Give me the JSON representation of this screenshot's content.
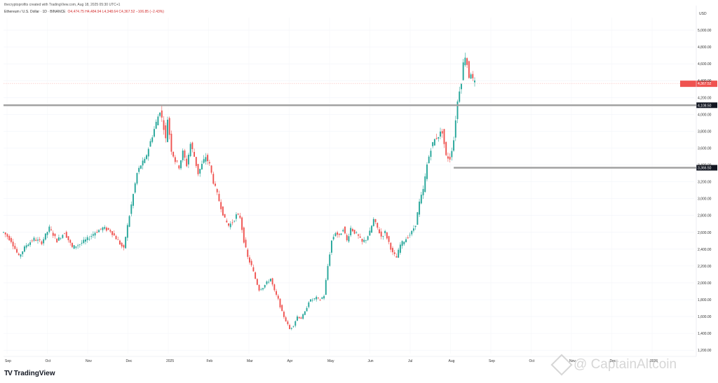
{
  "header": {
    "credit": "thecryptoprofits created with TradingView.com, Aug 18, 2025 05:30 UTC+1",
    "symbol": "Ethereum / U.S. Dollar · 1D · BINANCE",
    "ohlc": "O4,474.75 H4,484.94 L4,348.64 C4,367.52 −106.85 (−2.43%)"
  },
  "footer": {
    "brand": "TradingView"
  },
  "watermark": {
    "text": "@ CaptainAltcoin"
  },
  "axis": {
    "currency": "USD"
  },
  "colors": {
    "up": "#26a69a",
    "down": "#ef5350",
    "level": "#9e9e9e",
    "bg": "#ffffff"
  },
  "chart_data": {
    "type": "candlestick",
    "title": "Ethereum / U.S. Dollar · 1D · BINANCE",
    "x_ticks": [
      "Sep",
      "Oct",
      "Nov",
      "Dec",
      "2025",
      "Feb",
      "Mar",
      "Apr",
      "May",
      "Jun",
      "Jul",
      "Aug",
      "Sep",
      "Oct",
      "Nov",
      "Dec",
      "2026"
    ],
    "y_ticks": [
      "1,200.00",
      "1,400.00",
      "1,600.00",
      "1,800.00",
      "2,000.00",
      "2,200.00",
      "2,400.00",
      "2,600.00",
      "2,800.00",
      "3,000.00",
      "3,200.00",
      "3,400.00",
      "3,600.00",
      "3,800.00",
      "4,000.00",
      "4,200.00",
      "4,400.00",
      "4,600.00",
      "4,800.00",
      "5,000.00"
    ],
    "ylim": [
      1160,
      5150
    ],
    "close_path": [
      [
        0,
        2600
      ],
      [
        4,
        2500
      ],
      [
        8,
        2310
      ],
      [
        12,
        2450
      ],
      [
        16,
        2520
      ],
      [
        20,
        2480
      ],
      [
        24,
        2650
      ],
      [
        28,
        2500
      ],
      [
        32,
        2600
      ],
      [
        36,
        2420
      ],
      [
        40,
        2460
      ],
      [
        44,
        2520
      ],
      [
        48,
        2600
      ],
      [
        52,
        2650
      ],
      [
        56,
        2620
      ],
      [
        60,
        2500
      ],
      [
        63,
        2400
      ],
      [
        64,
        2550
      ],
      [
        66,
        2800
      ],
      [
        68,
        3050
      ],
      [
        70,
        3300
      ],
      [
        72,
        3400
      ],
      [
        74,
        3450
      ],
      [
        76,
        3600
      ],
      [
        78,
        3750
      ],
      [
        80,
        3900
      ],
      [
        82,
        4050
      ],
      [
        84,
        3850
      ],
      [
        85,
        3700
      ],
      [
        86,
        3950
      ],
      [
        88,
        3580
      ],
      [
        90,
        3450
      ],
      [
        92,
        3380
      ],
      [
        94,
        3550
      ],
      [
        96,
        3400
      ],
      [
        98,
        3650
      ],
      [
        100,
        3500
      ],
      [
        102,
        3300
      ],
      [
        104,
        3400
      ],
      [
        106,
        3500
      ],
      [
        108,
        3400
      ],
      [
        110,
        3200
      ],
      [
        112,
        3050
      ],
      [
        114,
        2900
      ],
      [
        116,
        2750
      ],
      [
        118,
        2680
      ],
      [
        120,
        2720
      ],
      [
        122,
        2800
      ],
      [
        124,
        2780
      ],
      [
        126,
        2500
      ],
      [
        128,
        2300
      ],
      [
        130,
        2200
      ],
      [
        132,
        2050
      ],
      [
        134,
        1920
      ],
      [
        136,
        1950
      ],
      [
        138,
        2000
      ],
      [
        140,
        2050
      ],
      [
        142,
        1900
      ],
      [
        144,
        1800
      ],
      [
        146,
        1650
      ],
      [
        148,
        1550
      ],
      [
        150,
        1450
      ],
      [
        152,
        1500
      ],
      [
        154,
        1600
      ],
      [
        156,
        1580
      ],
      [
        158,
        1650
      ],
      [
        160,
        1780
      ],
      [
        162,
        1800
      ],
      [
        164,
        1820
      ],
      [
        166,
        1800
      ],
      [
        168,
        1850
      ],
      [
        170,
        2200
      ],
      [
        172,
        2500
      ],
      [
        174,
        2600
      ],
      [
        176,
        2550
      ],
      [
        178,
        2650
      ],
      [
        180,
        2500
      ],
      [
        182,
        2650
      ],
      [
        184,
        2600
      ],
      [
        186,
        2550
      ],
      [
        188,
        2480
      ],
      [
        190,
        2520
      ],
      [
        192,
        2600
      ],
      [
        194,
        2750
      ],
      [
        196,
        2650
      ],
      [
        198,
        2550
      ],
      [
        200,
        2600
      ],
      [
        202,
        2480
      ],
      [
        204,
        2350
      ],
      [
        206,
        2300
      ],
      [
        208,
        2450
      ],
      [
        210,
        2500
      ],
      [
        212,
        2550
      ],
      [
        214,
        2600
      ],
      [
        216,
        2700
      ],
      [
        218,
        2950
      ],
      [
        220,
        3100
      ],
      [
        222,
        3400
      ],
      [
        224,
        3600
      ],
      [
        226,
        3700
      ],
      [
        228,
        3750
      ],
      [
        230,
        3800
      ],
      [
        231,
        3650
      ],
      [
        232,
        3500
      ],
      [
        234,
        3480
      ],
      [
        236,
        3700
      ],
      [
        237,
        3950
      ],
      [
        238,
        4150
      ],
      [
        239,
        4300
      ],
      [
        240,
        4400
      ],
      [
        241,
        4600
      ],
      [
        242,
        4700
      ],
      [
        243,
        4600
      ],
      [
        244,
        4450
      ],
      [
        245,
        4500
      ],
      [
        246,
        4400
      ],
      [
        247,
        4367.52
      ]
    ],
    "levels": [
      {
        "label": "4,108.50",
        "value": 4108.5
      },
      {
        "label": "3,366.50",
        "value": 3366.5
      }
    ],
    "last_price": {
      "label": "4,367.52",
      "value": 4367.52
    }
  }
}
